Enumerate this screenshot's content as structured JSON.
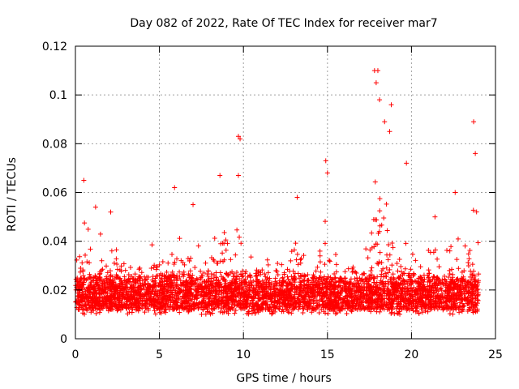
{
  "chart_data": {
    "type": "scatter",
    "title": "Day 082 of 2022, Rate Of TEC Index for receiver mar7",
    "xlabel": "GPS time / hours",
    "ylabel": "ROTI / TECUs",
    "xlim": [
      0,
      25
    ],
    "ylim": [
      0,
      0.12
    ],
    "grid": true,
    "marker": "+",
    "series_color": "#ff0000",
    "x_ticks": [
      0,
      5,
      10,
      15,
      20,
      25
    ],
    "x_tick_labels": [
      "0",
      "5",
      "10",
      "15",
      "20",
      "25"
    ],
    "y_ticks": [
      0,
      0.02,
      0.04,
      0.06,
      0.08,
      0.1,
      0.12
    ],
    "y_tick_labels": [
      "0",
      "0.02",
      "0.04",
      "0.06",
      "0.08",
      "0.1",
      "0.12"
    ],
    "x_range_of_data": [
      0,
      24
    ],
    "typical_band": [
      0.01,
      0.03
    ],
    "notable_points": [
      {
        "x": 0.5,
        "y": 0.065
      },
      {
        "x": 1.2,
        "y": 0.054
      },
      {
        "x": 2.1,
        "y": 0.052
      },
      {
        "x": 5.9,
        "y": 0.062
      },
      {
        "x": 7.0,
        "y": 0.055
      },
      {
        "x": 8.6,
        "y": 0.067
      },
      {
        "x": 9.7,
        "y": 0.083
      },
      {
        "x": 9.8,
        "y": 0.082
      },
      {
        "x": 9.7,
        "y": 0.067
      },
      {
        "x": 13.2,
        "y": 0.058
      },
      {
        "x": 14.9,
        "y": 0.073
      },
      {
        "x": 15.0,
        "y": 0.068
      },
      {
        "x": 17.8,
        "y": 0.11
      },
      {
        "x": 18.0,
        "y": 0.11
      },
      {
        "x": 17.9,
        "y": 0.105
      },
      {
        "x": 18.1,
        "y": 0.098
      },
      {
        "x": 18.4,
        "y": 0.089
      },
      {
        "x": 18.7,
        "y": 0.085
      },
      {
        "x": 18.8,
        "y": 0.096
      },
      {
        "x": 19.7,
        "y": 0.072
      },
      {
        "x": 21.4,
        "y": 0.05
      },
      {
        "x": 22.6,
        "y": 0.06
      },
      {
        "x": 23.7,
        "y": 0.089
      },
      {
        "x": 23.8,
        "y": 0.076
      }
    ]
  }
}
